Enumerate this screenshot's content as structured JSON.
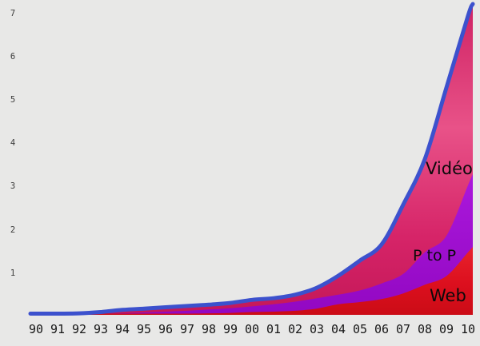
{
  "background_color": "#e8e8e7",
  "chart_data": {
    "type": "area",
    "stacked": true,
    "grid": false,
    "legend_position": "inline-annotations",
    "x_labels": [
      "90",
      "91",
      "92",
      "93",
      "94",
      "95",
      "96",
      "97",
      "98",
      "99",
      "00",
      "01",
      "02",
      "03",
      "04",
      "05",
      "06",
      "07",
      "08",
      "09",
      "10"
    ],
    "y_ticks": [
      "1",
      "2",
      "3",
      "4",
      "5",
      "6",
      "7"
    ],
    "ylim": [
      0,
      7.3
    ],
    "edge_line_color": "#3c51cd",
    "series": [
      {
        "name": "Web",
        "color": "#dc0f1e",
        "values": [
          0.01,
          0.02,
          0.03,
          0.04,
          0.05,
          0.06,
          0.07,
          0.08,
          0.09,
          0.1,
          0.12,
          0.13,
          0.15,
          0.2,
          0.3,
          0.35,
          0.42,
          0.55,
          0.75,
          0.95,
          1.5
        ]
      },
      {
        "name": "P to P",
        "color": "#a112d6",
        "values": [
          0.01,
          0.015,
          0.02,
          0.03,
          0.04,
          0.05,
          0.06,
          0.07,
          0.09,
          0.11,
          0.13,
          0.17,
          0.21,
          0.24,
          0.22,
          0.27,
          0.36,
          0.45,
          0.75,
          0.93,
          1.55
        ]
      },
      {
        "name": "Vidéo",
        "color": "#d9296c",
        "values": [
          0.02,
          0.025,
          0.04,
          0.05,
          0.08,
          0.09,
          0.1,
          0.11,
          0.11,
          0.12,
          0.15,
          0.14,
          0.16,
          0.24,
          0.44,
          0.69,
          0.9,
          1.6,
          2.15,
          3.42,
          3.91
        ]
      }
    ],
    "annotations": [
      {
        "text": "Vidéo",
        "color": "#0a0a0a"
      },
      {
        "text": "P to P",
        "color": "#0a0a0a"
      },
      {
        "text": "Web",
        "color": "#0a0a0a"
      }
    ]
  }
}
